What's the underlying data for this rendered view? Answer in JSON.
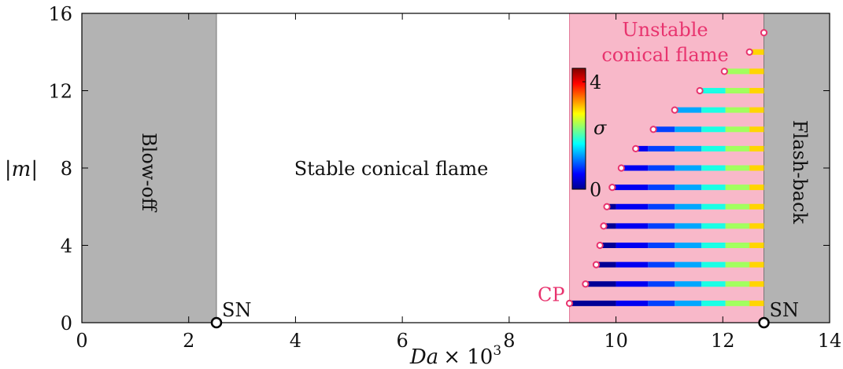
{
  "chart_data": {
    "type": "heatmap",
    "xlabel": "Da × 10³",
    "xlabel_main": "Da",
    "xlabel_times": "× 10",
    "xlabel_exp": "3",
    "ylabel": "|m|",
    "xlim": [
      0,
      14
    ],
    "ylim": [
      0,
      16
    ],
    "x_ticks": [
      0,
      2,
      4,
      6,
      8,
      10,
      12,
      14
    ],
    "y_ticks": [
      0,
      4,
      8,
      12,
      16
    ],
    "regions": [
      {
        "label": "Blow-off",
        "x0": 0,
        "x1": 2.52,
        "color": "#b3b3b3"
      },
      {
        "label": "Stable conical flame",
        "x0": 2.52,
        "x1": 9.13,
        "color": "#ffffff"
      },
      {
        "label_line1": "Unstable",
        "label_line2": "conical flame",
        "x0": 9.13,
        "x1": 12.77,
        "color": "#f8b8c9"
      },
      {
        "label": "Flash-back",
        "x0": 12.77,
        "x1": 14,
        "color": "#b3b3b3"
      }
    ],
    "saddle_nodes": [
      {
        "label": "SN",
        "x": 2.52,
        "y": 0
      },
      {
        "label": "SN",
        "x": 12.77,
        "y": 0
      }
    ],
    "critical_point": {
      "label": "CP",
      "x": 9.13,
      "y": 1
    },
    "onset_points": [
      {
        "m": 1,
        "da": 9.13
      },
      {
        "m": 2,
        "da": 9.43
      },
      {
        "m": 3,
        "da": 9.63
      },
      {
        "m": 4,
        "da": 9.7
      },
      {
        "m": 5,
        "da": 9.77
      },
      {
        "m": 6,
        "da": 9.83
      },
      {
        "m": 7,
        "da": 9.93
      },
      {
        "m": 8,
        "da": 10.1
      },
      {
        "m": 9,
        "da": 10.37
      },
      {
        "m": 10,
        "da": 10.7
      },
      {
        "m": 11,
        "da": 11.1
      },
      {
        "m": 12,
        "da": 11.57
      },
      {
        "m": 13,
        "da": 12.03
      },
      {
        "m": 14,
        "da": 12.5
      },
      {
        "m": 15,
        "da": 12.77
      }
    ],
    "growth_rate_bands": [
      {
        "x0": 0,
        "x1": 10.0,
        "sigma": 0.1
      },
      {
        "x0": 10.0,
        "x1": 10.6,
        "sigma": 0.5
      },
      {
        "x0": 10.6,
        "x1": 11.1,
        "sigma": 0.85
      },
      {
        "x0": 11.1,
        "x1": 11.6,
        "sigma": 1.3
      },
      {
        "x0": 11.6,
        "x1": 12.05,
        "sigma": 1.8
      },
      {
        "x0": 12.05,
        "x1": 12.5,
        "sigma": 2.4
      },
      {
        "x0": 12.5,
        "x1": 12.77,
        "sigma": 3.0
      }
    ],
    "colorbar": {
      "label": "σ",
      "min": 0,
      "max": 4.5,
      "tick_labels": [
        "0",
        "4"
      ],
      "tick_values": [
        0,
        4
      ],
      "colormap": "jet"
    },
    "grid": false
  }
}
